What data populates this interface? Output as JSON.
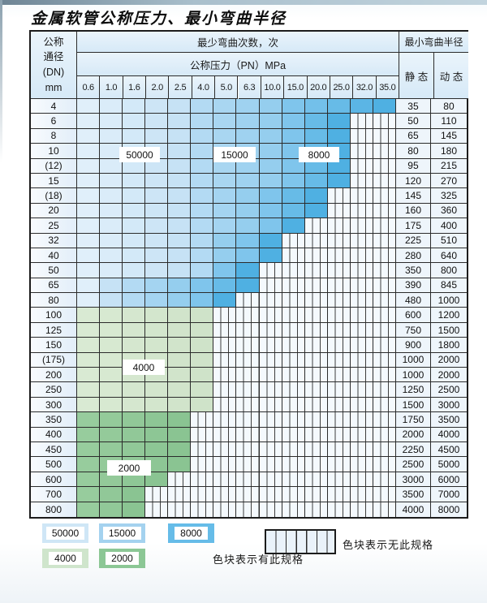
{
  "page": {
    "title": "金属软管公称压力、最小弯曲半径"
  },
  "table": {
    "corner_header": {
      "line1": "公称",
      "line2": "通径",
      "line3": "(DN)",
      "line4": "mm"
    },
    "cycles_header": "最少弯曲次数，次",
    "pressure_header": "公称压力（PN）MPa",
    "radius_header": "最小弯曲半径",
    "static_label": "静 态",
    "dynamic_label": "动 态",
    "pressures": [
      "0.6",
      "1.0",
      "1.6",
      "2.0",
      "2.5",
      "4.0",
      "5.0",
      "6.3",
      "10.0",
      "15.0",
      "20.0",
      "25.0",
      "32.0",
      "35.0"
    ],
    "cell_legend": {
      "L": "50000 次 (浅蓝)",
      "M": "15000 次 (中蓝)",
      "D": "8000 次 (深蓝)",
      "G": "4000 次 (浅绿)",
      "g": "2000 次 (深绿)",
      "H": "无此规格 (竖线格)"
    },
    "rows": [
      {
        "dn": "4",
        "static": "35",
        "dynamic": "80",
        "cells": "LLLLLMMMMDDDDD"
      },
      {
        "dn": "6",
        "static": "50",
        "dynamic": "110",
        "cells": "LLLLLMMMMDDDHH"
      },
      {
        "dn": "8",
        "static": "65",
        "dynamic": "145",
        "cells": "LLLLLMMMMDDDHH"
      },
      {
        "dn": "10",
        "static": "80",
        "dynamic": "180",
        "cells": "LLLLLMMMMDDDHH"
      },
      {
        "dn": "(12)",
        "static": "95",
        "dynamic": "215",
        "cells": "LLLLLMMMMDDDHH"
      },
      {
        "dn": "15",
        "static": "120",
        "dynamic": "270",
        "cells": "LLLLLMMMMDDDHH"
      },
      {
        "dn": "(18)",
        "static": "145",
        "dynamic": "325",
        "cells": "LLLLLMMMDDDHHH"
      },
      {
        "dn": "20",
        "static": "160",
        "dynamic": "360",
        "cells": "LLLLLMMMDDDHHH"
      },
      {
        "dn": "25",
        "static": "175",
        "dynamic": "400",
        "cells": "LLLLLMMMDDHHHH"
      },
      {
        "dn": "32",
        "static": "225",
        "dynamic": "510",
        "cells": "LLLLLMMDDHHHHH"
      },
      {
        "dn": "40",
        "static": "280",
        "dynamic": "640",
        "cells": "LLLLLMMDDHHHHH"
      },
      {
        "dn": "50",
        "static": "350",
        "dynamic": "800",
        "cells": "LLLLLMDDHHHHHH"
      },
      {
        "dn": "65",
        "static": "390",
        "dynamic": "845",
        "cells": "LLMMMDDDHHHHHH"
      },
      {
        "dn": "80",
        "static": "480",
        "dynamic": "1000",
        "cells": "LLMMMDDHHHHHHH"
      },
      {
        "dn": "100",
        "static": "600",
        "dynamic": "1200",
        "cells": "GGGGGGHHHHHHHH"
      },
      {
        "dn": "125",
        "static": "750",
        "dynamic": "1500",
        "cells": "GGGGGGHHHHHHHH"
      },
      {
        "dn": "150",
        "static": "900",
        "dynamic": "1800",
        "cells": "GGGGGGHHHHHHHH"
      },
      {
        "dn": "(175)",
        "static": "1000",
        "dynamic": "2000",
        "cells": "GGGGGGHHHHHHHH"
      },
      {
        "dn": "200",
        "static": "1000",
        "dynamic": "2000",
        "cells": "GGGGGGHHHHHHHH"
      },
      {
        "dn": "250",
        "static": "1250",
        "dynamic": "2500",
        "cells": "GGGGGGHHHHHHHH"
      },
      {
        "dn": "300",
        "static": "1500",
        "dynamic": "3000",
        "cells": "GGGGGGHHHHHHHH"
      },
      {
        "dn": "350",
        "static": "1750",
        "dynamic": "3500",
        "cells": "gggggHHHHHHHHH"
      },
      {
        "dn": "400",
        "static": "2000",
        "dynamic": "4000",
        "cells": "gggggHHHHHHHHH"
      },
      {
        "dn": "450",
        "static": "2250",
        "dynamic": "4500",
        "cells": "gggggHHHHHHHHH"
      },
      {
        "dn": "500",
        "static": "2500",
        "dynamic": "5000",
        "cells": "gggggHHHHHHHHH"
      },
      {
        "dn": "600",
        "static": "3000",
        "dynamic": "6000",
        "cells": "ggggHHHHHHHHHH"
      },
      {
        "dn": "700",
        "static": "3500",
        "dynamic": "7000",
        "cells": "gggHHHHHHHHHHH"
      },
      {
        "dn": "800",
        "static": "4000",
        "dynamic": "8000",
        "cells": "gggHHHHHHHHHHH"
      }
    ]
  },
  "overlay_labels": {
    "b50000": "50000",
    "b15000": "15000",
    "b8000": "8000",
    "b4000": "4000",
    "b2000": "2000"
  },
  "legend": {
    "items": [
      {
        "label": "50000",
        "color": "#cfe6f6"
      },
      {
        "label": "15000",
        "color": "#a4d2ef"
      },
      {
        "label": "8000",
        "color": "#66bce8"
      },
      {
        "label": "4000",
        "color": "#cfe5cc"
      },
      {
        "label": "2000",
        "color": "#8cc795"
      }
    ],
    "has_spec_text": "色块表示有此规格",
    "no_spec_text": "色块表示无此规格"
  },
  "colors": {
    "blue_light_start": "#e0effa",
    "blue_light_end": "#c6e2f5",
    "blue_mid_start": "#b3daf3",
    "blue_mid_end": "#95ceee",
    "blue_dark_start": "#7fc5ec",
    "blue_dark_end": "#4fb0e2",
    "green_light_start": "#d9ead3",
    "green_light_end": "#cfe3c9",
    "green_dark_start": "#97cc9d",
    "green_dark_end": "#8ac492",
    "border": "#2b2b2b"
  }
}
